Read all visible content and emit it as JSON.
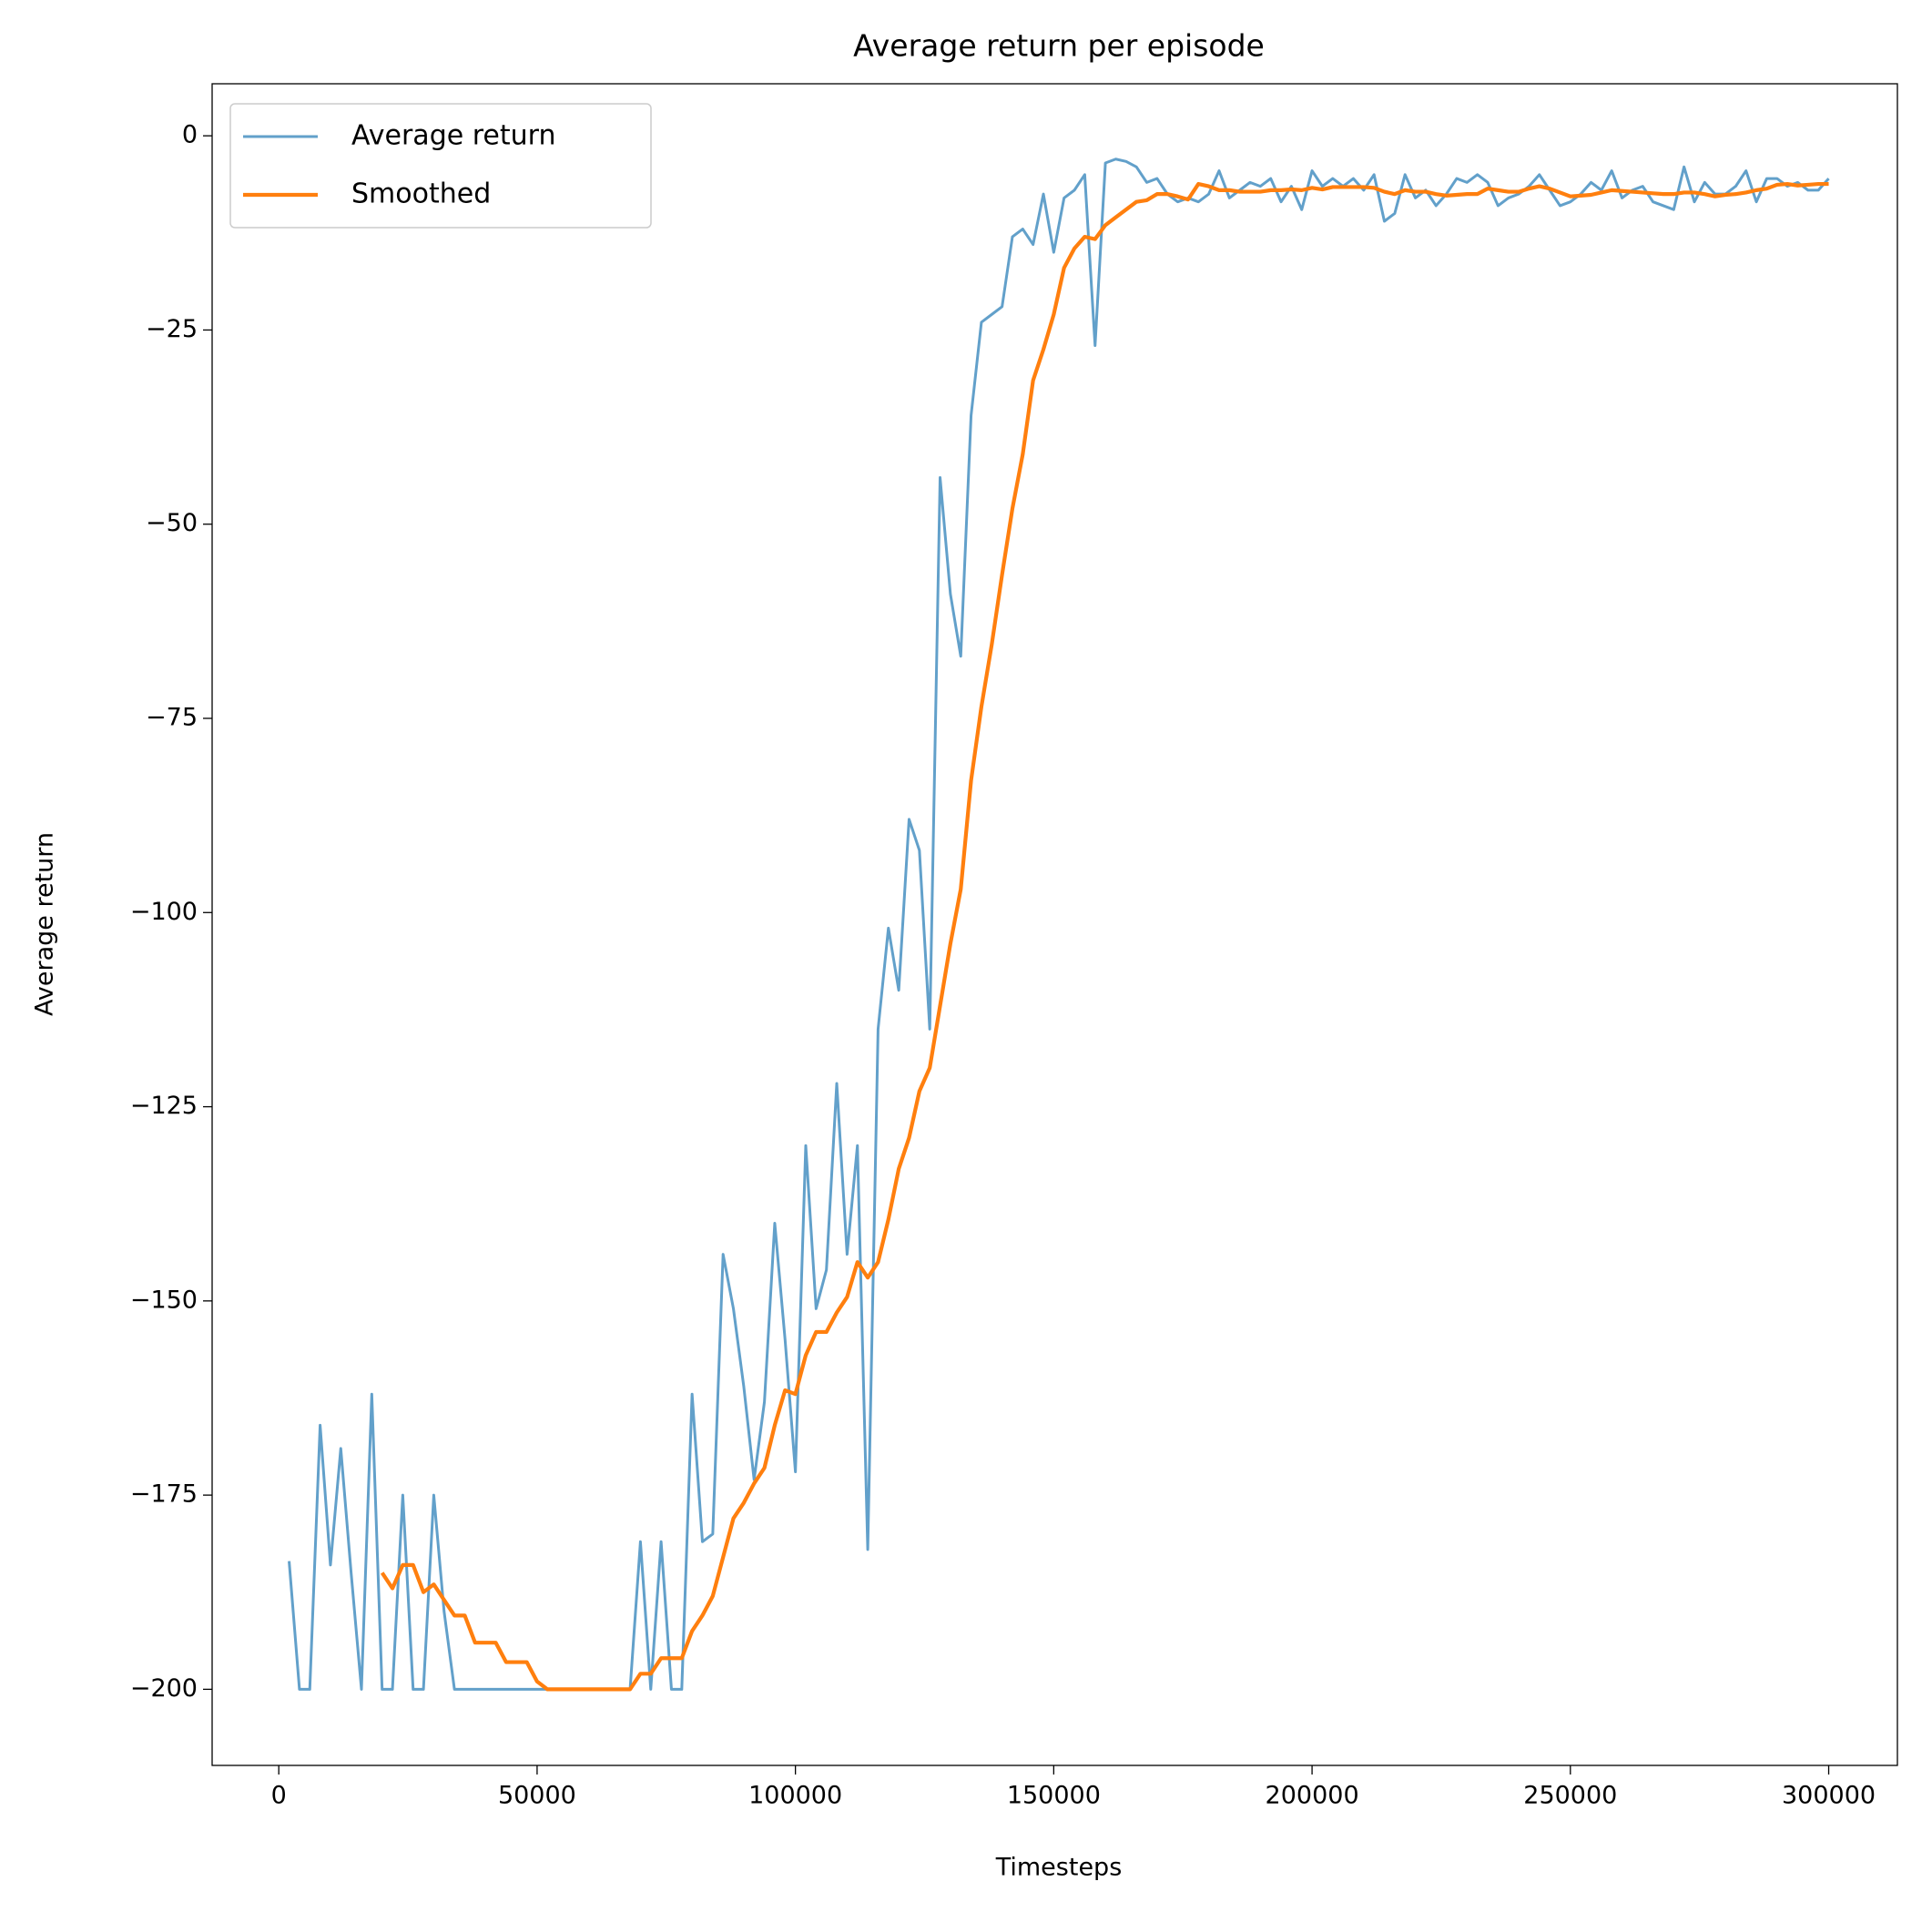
{
  "chart_data": {
    "type": "line",
    "title": "Average return per episode",
    "xlabel": "Timesteps",
    "ylabel": "Average return",
    "x": [
      2000,
      4000,
      6000,
      8000,
      10000,
      12000,
      14000,
      16000,
      18000,
      20000,
      22000,
      24000,
      26000,
      28000,
      30000,
      32000,
      34000,
      36000,
      38000,
      40000,
      42000,
      44000,
      46000,
      48000,
      50000,
      52000,
      54000,
      56000,
      58000,
      60000,
      62000,
      64000,
      66000,
      68000,
      70000,
      72000,
      74000,
      76000,
      78000,
      80000,
      82000,
      84000,
      86000,
      88000,
      90000,
      92000,
      94000,
      96000,
      98000,
      100000,
      102000,
      104000,
      106000,
      108000,
      110000,
      112000,
      114000,
      116000,
      118000,
      120000,
      122000,
      124000,
      126000,
      128000,
      130000,
      132000,
      134000,
      136000,
      138000,
      140000,
      142000,
      144000,
      146000,
      148000,
      150000,
      152000,
      154000,
      156000,
      158000,
      160000,
      162000,
      164000,
      166000,
      168000,
      170000,
      172000,
      174000,
      176000,
      178000,
      180000,
      182000,
      184000,
      186000,
      188000,
      190000,
      192000,
      194000,
      196000,
      198000,
      200000,
      202000,
      204000,
      206000,
      208000,
      210000,
      212000,
      214000,
      216000,
      218000,
      220000,
      222000,
      224000,
      226000,
      228000,
      230000,
      232000,
      234000,
      236000,
      238000,
      240000,
      242000,
      244000,
      246000,
      248000,
      250000,
      252000,
      254000,
      256000,
      258000,
      260000,
      262000,
      264000,
      266000,
      268000,
      270000,
      272000,
      274000,
      276000,
      278000,
      280000,
      282000,
      284000,
      286000,
      288000,
      290000,
      292000,
      294000,
      296000,
      298000,
      300000
    ],
    "series": [
      {
        "name": "Average return",
        "color": "#1f77b4",
        "values": [
          -183.5,
          -200,
          -200,
          -166,
          -184,
          -169,
          -185,
          -200,
          -162,
          -200,
          -200,
          -175,
          -200,
          -200,
          -175,
          -190,
          -200,
          -200,
          -200,
          -200,
          -200,
          -200,
          -200,
          -200,
          -200,
          -200,
          -200,
          -200,
          -200,
          -200,
          -200,
          -200,
          -200,
          -200,
          -181,
          -200,
          -181,
          -200,
          -200,
          -162,
          -181,
          -180,
          -144,
          -151,
          -161,
          -173,
          -163,
          -140,
          -155,
          -172,
          -130,
          -151,
          -146,
          -122,
          -144,
          -130,
          -182,
          -115,
          -102,
          -110,
          -88,
          -92,
          -115,
          -44,
          -59,
          -67,
          -36,
          -24,
          -23,
          -22,
          -13,
          -12,
          -14,
          -7.5,
          -15,
          -8,
          -7,
          -5,
          -27,
          -3.5,
          -3,
          -3.3,
          -4,
          -6,
          -5.5,
          -7.5,
          -8.5,
          -8,
          -8.5,
          -7.5,
          -4.5,
          -8,
          -7,
          -6,
          -6.5,
          -5.5,
          -8.5,
          -6.5,
          -9.5,
          -4.5,
          -6.5,
          -5.5,
          -6.5,
          -5.5,
          -7,
          -5,
          -11,
          -10,
          -5,
          -8,
          -7,
          -9,
          -7.5,
          -5.5,
          -6,
          -5,
          -6,
          -9,
          -8,
          -7.5,
          -6.5,
          -5,
          -7,
          -9,
          -8.5,
          -7.5,
          -6,
          -7,
          -4.5,
          -8,
          -7,
          -6.5,
          -8.5,
          -9,
          -9.5,
          -4,
          -8.5,
          -6,
          -7.5,
          -7.5,
          -6.5,
          -4.5,
          -8.5,
          -5.5,
          -5.5,
          -6.5,
          -6,
          -7,
          -7,
          -5.5
        ]
      },
      {
        "name": "Smoothed",
        "color": "#ff7f0e",
        "values": [
          null,
          null,
          null,
          null,
          null,
          null,
          null,
          null,
          null,
          -185,
          -187,
          -184,
          -184,
          -187.5,
          -186.5,
          -188.5,
          -190.5,
          -190.5,
          -194,
          -194,
          -194,
          -196.5,
          -196.5,
          -196.5,
          -199,
          -200,
          -200,
          -200,
          -200,
          -200,
          -200,
          -200,
          -200,
          -200,
          -198,
          -198,
          -196,
          -196,
          -196,
          -192.5,
          -190.5,
          -188,
          -183,
          -178,
          -176,
          -173.5,
          -171.5,
          -166,
          -161.5,
          -162,
          -157,
          -154,
          -154,
          -151.5,
          -149.5,
          -145,
          -147,
          -145,
          -139.5,
          -133,
          -129,
          -123,
          -120,
          -112,
          -104,
          -97,
          -83,
          -73.5,
          -65.5,
          -56.5,
          -48,
          -41,
          -31.5,
          -27.5,
          -23,
          -17,
          -14.5,
          -13,
          -13.3,
          -11.5,
          -10.5,
          -9.5,
          -8.5,
          -8.3,
          -7.5,
          -7.5,
          -7.8,
          -8.2,
          -6.2,
          -6.5,
          -7,
          -7,
          -7.2,
          -7.2,
          -7.2,
          -7,
          -7,
          -6.9,
          -7,
          -6.7,
          -6.9,
          -6.6,
          -6.6,
          -6.6,
          -6.6,
          -6.7,
          -7.2,
          -7.5,
          -7,
          -7.2,
          -7.2,
          -7.5,
          -7.7,
          -7.6,
          -7.5,
          -7.5,
          -6.8,
          -7,
          -7.2,
          -7.2,
          -6.8,
          -6.5,
          -6.8,
          -7.3,
          -7.8,
          -7.7,
          -7.6,
          -7.3,
          -7,
          -7.1,
          -7.2,
          -7.3,
          -7.4,
          -7.5,
          -7.5,
          -7.3,
          -7.3,
          -7.5,
          -7.8,
          -7.6,
          -7.5,
          -7.3,
          -7,
          -6.8,
          -6.3,
          -6.2,
          -6.4,
          -6.3,
          -6.2,
          -6.2
        ]
      }
    ],
    "xlim": [
      -12900,
      313300
    ],
    "ylim": [
      -209.8,
      6.7
    ],
    "xticks": [
      0,
      50000,
      100000,
      150000,
      200000,
      250000,
      300000
    ],
    "yticks": [
      {
        "value": -200,
        "label": "−200"
      },
      {
        "value": -175,
        "label": "−175"
      },
      {
        "value": -150,
        "label": "−150"
      },
      {
        "value": -125,
        "label": "−125"
      },
      {
        "value": -100,
        "label": "−100"
      },
      {
        "value": -75,
        "label": "−75"
      },
      {
        "value": -50,
        "label": "−50"
      },
      {
        "value": -25,
        "label": "−25"
      },
      0
    ],
    "legend": "upper left"
  }
}
